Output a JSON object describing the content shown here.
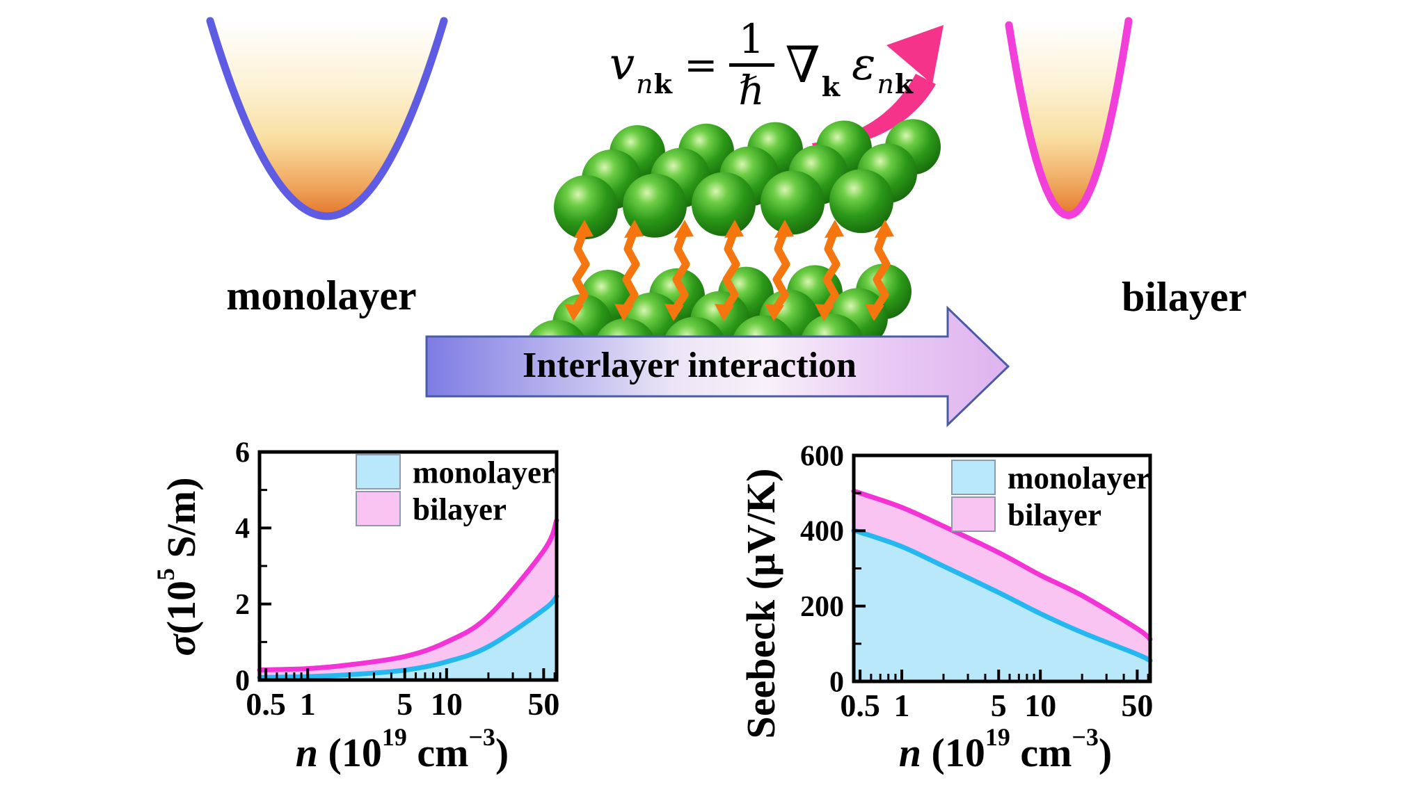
{
  "labels": {
    "monolayer": "monolayer",
    "bilayer": "bilayer",
    "interlayer_arrow": "Interlayer interaction"
  },
  "equation": {
    "v": "v",
    "v_sub_n": "n",
    "v_sub_k": "k",
    "equals": "=",
    "numerator": "1",
    "hbar": "ℏ",
    "nabla": "∇",
    "nabla_sub": "k",
    "epsilon": "ε",
    "eps_sub_n": "n",
    "eps_sub_k": "k"
  },
  "colors": {
    "monolayer_line": "#25B7EF",
    "monolayer_fill": "#B9E8FA",
    "bilayer_line": "#F433D6",
    "bilayer_fill": "#F9C4F2",
    "parabola_monolayer_stroke": "#5E5CE2",
    "parabola_bilayer_stroke": "#F23FD9",
    "well_gradient_top": "#FFFFFF",
    "well_gradient_bottom": "#E4762A",
    "atom_green": "#2E9418",
    "bond_orange": "#F5760F",
    "swoosh_pink": "#F5338B",
    "arrow_outline": "#4A5BA5",
    "arrow_body_left": "#7E7CE4",
    "arrow_body_mid": "#F6EFF9",
    "arrow_body_right": "#DFB3EF",
    "frame_black": "#000000"
  },
  "chart_data": [
    {
      "type": "area",
      "name": "electrical-conductivity",
      "xscale": "log",
      "xlim": [
        0.45,
        62
      ],
      "ylim": [
        0,
        6
      ],
      "grid": false,
      "legend_position": "top-center-inside",
      "xlabel_parts": [
        {
          "t": "n",
          "i": 1
        },
        {
          "t": " (10"
        },
        {
          "t": "19",
          "s": 1
        },
        {
          "t": " cm"
        },
        {
          "t": "−3",
          "s": 1
        },
        {
          "t": ")"
        }
      ],
      "ylabel_parts": [
        {
          "t": "σ",
          "i": 1
        },
        {
          "t": "(10"
        },
        {
          "t": "5",
          "s": 1
        },
        {
          "t": " S/m)"
        }
      ],
      "xticks": [
        {
          "v": 0.5,
          "label": "0.5"
        },
        {
          "v": 1,
          "label": "1"
        },
        {
          "v": 5,
          "label": "5"
        },
        {
          "v": 10,
          "label": "10"
        },
        {
          "v": 50,
          "label": "50"
        }
      ],
      "xminor": [
        0.6,
        0.7,
        0.8,
        0.9,
        2,
        3,
        4,
        6,
        7,
        8,
        9,
        20,
        30,
        40,
        60
      ],
      "yticks": [
        {
          "v": 0,
          "label": "0"
        },
        {
          "v": 2,
          "label": "2"
        },
        {
          "v": 4,
          "label": "4"
        },
        {
          "v": 6,
          "label": "6"
        }
      ],
      "yminor": [
        1,
        3,
        5
      ],
      "x": [
        0.45,
        0.5,
        1,
        2,
        5,
        10,
        20,
        50,
        62
      ],
      "series": [
        {
          "name": "monolayer",
          "values": [
            0.065,
            0.07,
            0.09,
            0.14,
            0.26,
            0.48,
            0.88,
            1.85,
            2.2
          ]
        },
        {
          "name": "bilayer",
          "values": [
            0.26,
            0.27,
            0.3,
            0.4,
            0.62,
            1.0,
            1.68,
            3.4,
            4.2
          ]
        }
      ],
      "legend": [
        "monolayer",
        "bilayer"
      ]
    },
    {
      "type": "area",
      "name": "seebeck-coefficient",
      "xscale": "log",
      "xlim": [
        0.45,
        62
      ],
      "ylim": [
        0,
        600
      ],
      "grid": false,
      "legend_position": "top-center-inside",
      "xlabel_parts": [
        {
          "t": "n",
          "i": 1
        },
        {
          "t": " (10"
        },
        {
          "t": "19",
          "s": 1
        },
        {
          "t": " cm"
        },
        {
          "t": "−3",
          "s": 1
        },
        {
          "t": ")"
        }
      ],
      "ylabel_parts": [
        {
          "t": "Seebeck (μV/K)"
        }
      ],
      "xticks": [
        {
          "v": 0.5,
          "label": "0.5"
        },
        {
          "v": 1,
          "label": "1"
        },
        {
          "v": 5,
          "label": "5"
        },
        {
          "v": 10,
          "label": "10"
        },
        {
          "v": 50,
          "label": "50"
        }
      ],
      "xminor": [
        0.6,
        0.7,
        0.8,
        0.9,
        2,
        3,
        4,
        6,
        7,
        8,
        9,
        20,
        30,
        40,
        60
      ],
      "yticks": [
        {
          "v": 0,
          "label": "0"
        },
        {
          "v": 200,
          "label": "200"
        },
        {
          "v": 400,
          "label": "400"
        },
        {
          "v": 600,
          "label": "600"
        }
      ],
      "yminor": [
        100,
        300,
        500
      ],
      "x": [
        0.45,
        0.5,
        1,
        2,
        5,
        10,
        20,
        50,
        62
      ],
      "series": [
        {
          "name": "monolayer",
          "values": [
            400,
            396,
            358,
            306,
            236,
            180,
            130,
            72,
            55
          ]
        },
        {
          "name": "bilayer",
          "values": [
            505,
            500,
            462,
            412,
            342,
            282,
            228,
            140,
            112
          ]
        }
      ],
      "legend": [
        "monolayer",
        "bilayer"
      ]
    }
  ]
}
